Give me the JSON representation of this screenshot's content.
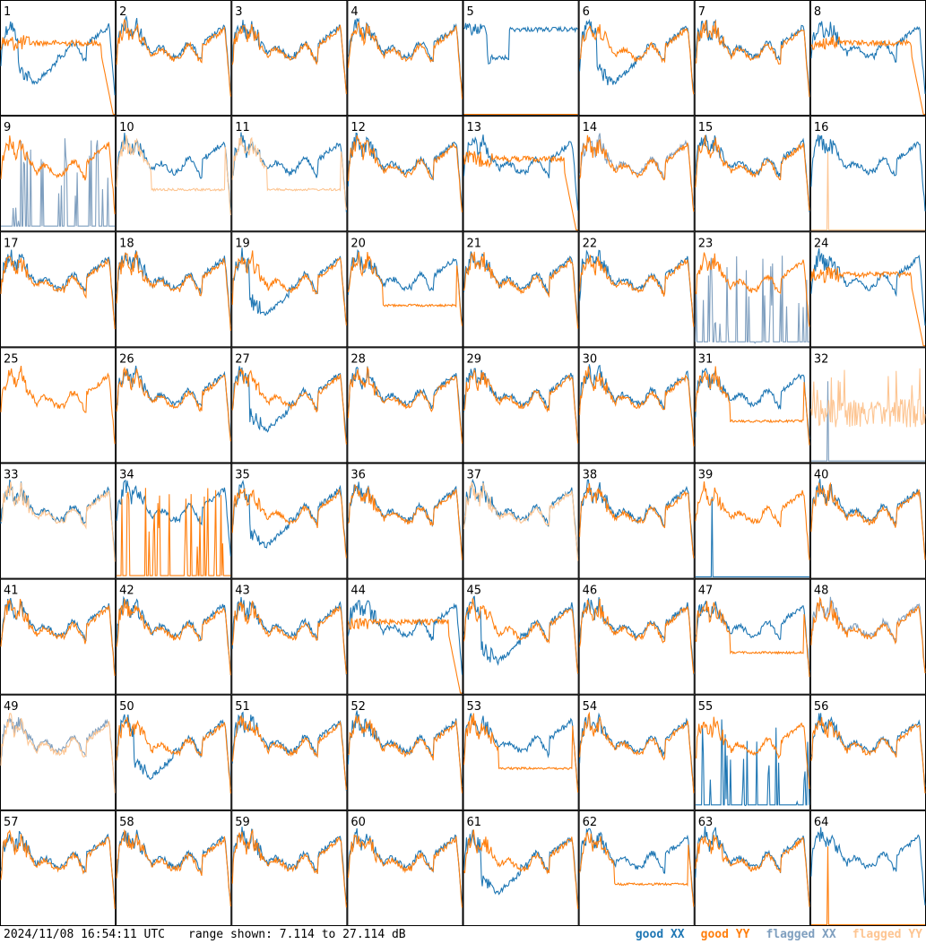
{
  "footer": {
    "timestamp": "2024/11/08 16:54:11 UTC",
    "range_text": "range shown: 7.114 to 27.114 dB"
  },
  "colors": {
    "good_xx": "#1f77b4",
    "good_yy": "#ff7f0e",
    "flagged_xx": "#7f9fbf",
    "flagged_yy": "#fdc592"
  },
  "chart_data": {
    "type": "line",
    "layout": "small-multiples",
    "rows": 8,
    "cols": 8,
    "y_unit": "dB",
    "ylim": [
      7.114,
      27.114
    ],
    "legend": [
      {
        "key": "good_xx",
        "label": "good XX"
      },
      {
        "key": "good_yy",
        "label": "good YY"
      },
      {
        "key": "flagged_xx",
        "label": "flagged XX"
      },
      {
        "key": "flagged_yy",
        "label": "flagged YY"
      }
    ],
    "panels": [
      {
        "label": "1",
        "xx": "dip",
        "yy": "rolloff"
      },
      {
        "label": "2",
        "xx": "normal",
        "yy": "normal"
      },
      {
        "label": "3",
        "xx": "normal",
        "yy": "normal"
      },
      {
        "label": "4",
        "xx": "normal",
        "yy": "normal"
      },
      {
        "label": "5",
        "xx": "high",
        "yy": "flat0"
      },
      {
        "label": "6",
        "xx": "dip",
        "yy": "normal"
      },
      {
        "label": "7",
        "xx": "normal",
        "yy": "normal"
      },
      {
        "label": "8",
        "xx": "normal",
        "yy": "rolloff"
      },
      {
        "label": "9",
        "xx": "spikes",
        "xx_flag": true,
        "yy": "normal"
      },
      {
        "label": "10",
        "xx": "normal",
        "yy": "low",
        "yy_flag": true
      },
      {
        "label": "11",
        "xx": "normal",
        "yy": "low",
        "yy_flag": true
      },
      {
        "label": "12",
        "xx": "normal",
        "yy": "normal"
      },
      {
        "label": "13",
        "xx": "normal",
        "yy": "rolloff"
      },
      {
        "label": "14",
        "xx": "normal",
        "xx_flag": true,
        "yy": "normal"
      },
      {
        "label": "15",
        "xx": "normal",
        "yy": "normal"
      },
      {
        "label": "16",
        "xx": "normal",
        "yy": "spike1",
        "yy_flag": true
      },
      {
        "label": "17",
        "xx": "normal",
        "yy": "normal"
      },
      {
        "label": "18",
        "xx": "normal",
        "yy": "normal"
      },
      {
        "label": "19",
        "xx": "dip",
        "yy": "normal"
      },
      {
        "label": "20",
        "xx": "normal",
        "yy": "low"
      },
      {
        "label": "21",
        "xx": "normal",
        "yy": "normal"
      },
      {
        "label": "22",
        "xx": "normal",
        "yy": "normal"
      },
      {
        "label": "23",
        "xx": "spikes",
        "xx_flag": true,
        "yy": "normal"
      },
      {
        "label": "24",
        "xx": "normal",
        "yy": "rolloff"
      },
      {
        "label": "25",
        "xx": "none",
        "yy": "normal"
      },
      {
        "label": "26",
        "xx": "normal",
        "yy": "normal"
      },
      {
        "label": "27",
        "xx": "dip",
        "yy": "normal"
      },
      {
        "label": "28",
        "xx": "normal",
        "yy": "normal"
      },
      {
        "label": "29",
        "xx": "normal",
        "yy": "normal"
      },
      {
        "label": "30",
        "xx": "normal",
        "yy": "normal"
      },
      {
        "label": "31",
        "xx": "normal",
        "yy": "low"
      },
      {
        "label": "32",
        "xx": "spike1",
        "xx_flag": true,
        "yy": "noisy",
        "yy_flag": true
      },
      {
        "label": "33",
        "xx": "normal",
        "yy": "normal",
        "yy_flag": true
      },
      {
        "label": "34",
        "xx": "normal",
        "yy": "spikes"
      },
      {
        "label": "35",
        "xx": "dip",
        "yy": "normal"
      },
      {
        "label": "36",
        "xx": "normal",
        "yy": "normal"
      },
      {
        "label": "37",
        "xx": "normal",
        "yy": "normal",
        "yy_flag": true
      },
      {
        "label": "38",
        "xx": "normal",
        "yy": "normal"
      },
      {
        "label": "39",
        "xx": "spike1",
        "yy": "normal"
      },
      {
        "label": "40",
        "xx": "normal",
        "yy": "normal"
      },
      {
        "label": "41",
        "xx": "normal",
        "yy": "normal"
      },
      {
        "label": "42",
        "xx": "normal",
        "yy": "normal"
      },
      {
        "label": "43",
        "xx": "normal",
        "yy": "normal"
      },
      {
        "label": "44",
        "xx": "normal",
        "yy": "rolloff"
      },
      {
        "label": "45",
        "xx": "dip",
        "yy": "normal"
      },
      {
        "label": "46",
        "xx": "normal",
        "yy": "normal"
      },
      {
        "label": "47",
        "xx": "normal",
        "yy": "low"
      },
      {
        "label": "48",
        "xx": "normal",
        "xx_flag": true,
        "yy": "normal"
      },
      {
        "label": "49",
        "xx": "normal",
        "xx_flag": true,
        "yy": "normal",
        "yy_flag": true
      },
      {
        "label": "50",
        "xx": "dip",
        "yy": "normal"
      },
      {
        "label": "51",
        "xx": "normal",
        "yy": "normal"
      },
      {
        "label": "52",
        "xx": "normal",
        "yy": "normal"
      },
      {
        "label": "53",
        "xx": "normal",
        "yy": "low"
      },
      {
        "label": "54",
        "xx": "normal",
        "yy": "normal"
      },
      {
        "label": "55",
        "xx": "spikes",
        "yy": "normal"
      },
      {
        "label": "56",
        "xx": "normal",
        "yy": "normal"
      },
      {
        "label": "57",
        "xx": "normal",
        "yy": "normal"
      },
      {
        "label": "58",
        "xx": "normal",
        "yy": "normal"
      },
      {
        "label": "59",
        "xx": "normal",
        "yy": "normal"
      },
      {
        "label": "60",
        "xx": "normal",
        "yy": "normal"
      },
      {
        "label": "61",
        "xx": "dip",
        "yy": "normal"
      },
      {
        "label": "62",
        "xx": "normal",
        "yy": "low"
      },
      {
        "label": "63",
        "xx": "normal",
        "yy": "normal"
      },
      {
        "label": "64",
        "xx": "normal",
        "yy": "spike1"
      }
    ]
  }
}
